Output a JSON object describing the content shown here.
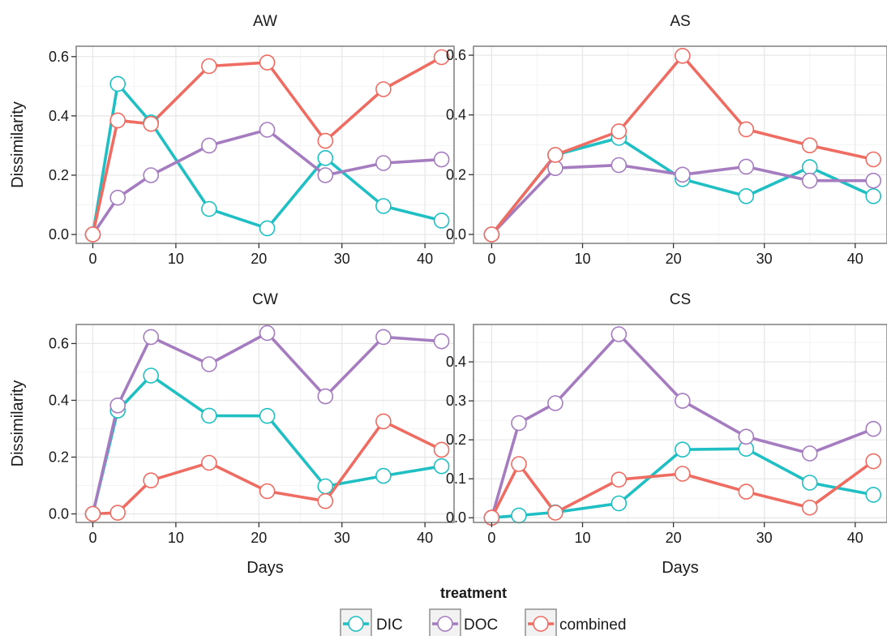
{
  "chart_data": {
    "type": "line",
    "xlabel": "Days",
    "ylabel": "Dissimilarity",
    "grid": true,
    "legend": {
      "title": "treatment",
      "position": "bottom"
    },
    "series_styles": [
      {
        "name": "DIC",
        "color": "#1fbfc3"
      },
      {
        "name": "DOC",
        "color": "#a57cc0"
      },
      {
        "name": "combined",
        "color": "#ee6c62"
      }
    ],
    "panels": [
      {
        "title": "AW",
        "xlim": [
          -2,
          43.5
        ],
        "ylim": [
          -0.03,
          0.635
        ],
        "xticks": [
          0,
          10,
          20,
          30,
          40
        ],
        "yticks": [
          0.0,
          0.2,
          0.4,
          0.6
        ],
        "ytick_labels": [
          "0.0",
          "0.2",
          "0.4",
          "0.6"
        ],
        "series": [
          {
            "name": "DIC",
            "x": [
              0,
              3,
              7,
              14,
              21,
              28,
              35,
              42
            ],
            "y": [
              0.0,
              0.508,
              0.378,
              0.086,
              0.021,
              0.258,
              0.096,
              0.047
            ]
          },
          {
            "name": "DOC",
            "x": [
              0,
              3,
              7,
              14,
              21,
              28,
              35,
              42
            ],
            "y": [
              0.0,
              0.124,
              0.2,
              0.3,
              0.353,
              0.2,
              0.241,
              0.253
            ]
          },
          {
            "name": "combined",
            "x": [
              0,
              3,
              7,
              14,
              21,
              28,
              35,
              42
            ],
            "y": [
              0.0,
              0.385,
              0.373,
              0.568,
              0.58,
              0.316,
              0.49,
              0.598
            ]
          }
        ]
      },
      {
        "title": "AS",
        "xlim": [
          -2,
          43.5
        ],
        "ylim": [
          -0.03,
          0.63
        ],
        "xticks": [
          0,
          10,
          20,
          30,
          40
        ],
        "yticks": [
          0.0,
          0.2,
          0.4,
          0.6
        ],
        "ytick_labels": [
          "0.0",
          "0.2",
          "0.4",
          "0.6"
        ],
        "series": [
          {
            "name": "DIC",
            "x": [
              0,
              7,
              14,
              21,
              28,
              35,
              42
            ],
            "y": [
              0.0,
              0.266,
              0.323,
              0.185,
              0.128,
              0.225,
              0.128
            ]
          },
          {
            "name": "DOC",
            "x": [
              0,
              7,
              14,
              21,
              28,
              35,
              42
            ],
            "y": [
              0.0,
              0.222,
              0.232,
              0.2,
              0.227,
              0.18,
              0.18
            ]
          },
          {
            "name": "combined",
            "x": [
              0,
              7,
              14,
              21,
              28,
              35,
              42
            ],
            "y": [
              0.0,
              0.266,
              0.345,
              0.598,
              0.352,
              0.298,
              0.251
            ]
          }
        ]
      },
      {
        "title": "CW",
        "xlim": [
          -2,
          43.5
        ],
        "ylim": [
          -0.03,
          0.667
        ],
        "xticks": [
          0,
          10,
          20,
          30,
          40
        ],
        "yticks": [
          0.0,
          0.2,
          0.4,
          0.6
        ],
        "ytick_labels": [
          "0.0",
          "0.2",
          "0.4",
          "0.6"
        ],
        "series": [
          {
            "name": "DIC",
            "x": [
              0,
              3,
              7,
              14,
              21,
              28,
              35,
              42
            ],
            "y": [
              0.0,
              0.364,
              0.487,
              0.346,
              0.345,
              0.097,
              0.134,
              0.168
            ]
          },
          {
            "name": "DOC",
            "x": [
              0,
              3,
              7,
              14,
              21,
              28,
              35,
              42
            ],
            "y": [
              0.0,
              0.382,
              0.623,
              0.527,
              0.637,
              0.414,
              0.623,
              0.608
            ]
          },
          {
            "name": "combined",
            "x": [
              0,
              3,
              7,
              14,
              21,
              28,
              35,
              42
            ],
            "y": [
              0.0,
              0.004,
              0.118,
              0.18,
              0.08,
              0.045,
              0.326,
              0.226
            ]
          }
        ]
      },
      {
        "title": "CS",
        "xlim": [
          -2,
          43.5
        ],
        "ylim": [
          -0.012,
          0.496
        ],
        "xticks": [
          0,
          10,
          20,
          30,
          40
        ],
        "yticks": [
          0.0,
          0.1,
          0.2,
          0.3,
          0.4
        ],
        "ytick_labels": [
          "0.0",
          "0.1",
          "0.2",
          "0.3",
          "0.4"
        ],
        "series": [
          {
            "name": "DIC",
            "x": [
              0,
              3,
              7,
              14,
              21,
              28,
              35,
              42
            ],
            "y": [
              0.0,
              0.006,
              0.014,
              0.037,
              0.175,
              0.177,
              0.09,
              0.059
            ]
          },
          {
            "name": "DOC",
            "x": [
              0,
              3,
              7,
              14,
              21,
              28,
              35,
              42
            ],
            "y": [
              0.0,
              0.243,
              0.294,
              0.471,
              0.3,
              0.208,
              0.165,
              0.228
            ]
          },
          {
            "name": "combined",
            "x": [
              0,
              3,
              7,
              14,
              21,
              28,
              35,
              42
            ],
            "y": [
              0.0,
              0.138,
              0.013,
              0.098,
              0.113,
              0.067,
              0.026,
              0.145
            ]
          }
        ]
      }
    ]
  }
}
